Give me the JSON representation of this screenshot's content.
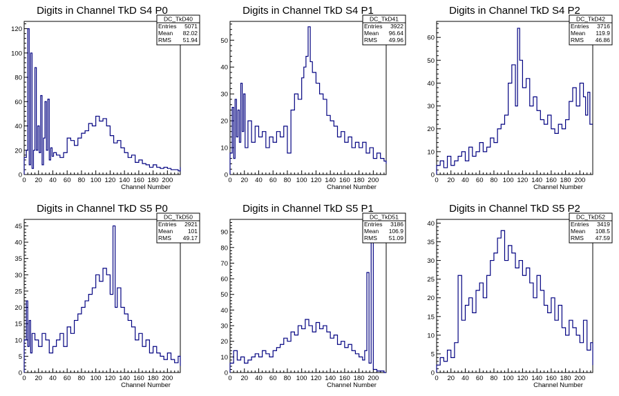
{
  "colors": {
    "line": "#000080",
    "frame": "#000000",
    "background": "#ffffff"
  },
  "chart_data": [
    {
      "type": "line",
      "title": "Digits in Channel TkD S4 P0",
      "xlabel": "Channel Number",
      "ylabel": "",
      "xlim": [
        0,
        218
      ],
      "ylim": [
        0,
        126
      ],
      "xticks": [
        0,
        20,
        40,
        60,
        80,
        100,
        120,
        140,
        160,
        180,
        200
      ],
      "yticks": [
        0,
        20,
        40,
        60,
        80,
        100,
        120
      ],
      "stats": {
        "name": "DC_TkD40",
        "rows": [
          [
            "Entries",
            "5071"
          ],
          [
            "Mean",
            "82.02"
          ],
          [
            "RMS",
            "51.94"
          ]
        ]
      },
      "series": [
        {
          "x": [
            0,
            3,
            5,
            7,
            9,
            11,
            13,
            15,
            17,
            19,
            21,
            23,
            25,
            27,
            29,
            31,
            33,
            35,
            37,
            39,
            41,
            45,
            50,
            55,
            60,
            65,
            70,
            75,
            80,
            85,
            90,
            95,
            100,
            105,
            110,
            115,
            120,
            125,
            130,
            135,
            140,
            145,
            150,
            155,
            160,
            165,
            170,
            175,
            180,
            185,
            190,
            195,
            200,
            205,
            210,
            215,
            218
          ],
          "y": [
            14,
            20,
            120,
            8,
            100,
            5,
            20,
            88,
            20,
            40,
            18,
            65,
            8,
            30,
            60,
            20,
            62,
            12,
            22,
            15,
            18,
            16,
            14,
            18,
            30,
            28,
            24,
            30,
            34,
            36,
            42,
            40,
            48,
            44,
            46,
            40,
            32,
            26,
            28,
            22,
            18,
            14,
            16,
            10,
            12,
            9,
            8,
            6,
            8,
            6,
            5,
            6,
            5,
            4,
            4,
            3,
            6
          ]
        }
      ]
    },
    {
      "type": "line",
      "title": "Digits in Channel TkD S4 P1",
      "xlabel": "Channel Number",
      "ylabel": "",
      "xlim": [
        0,
        218
      ],
      "ylim": [
        0,
        57
      ],
      "xticks": [
        0,
        20,
        40,
        60,
        80,
        100,
        120,
        140,
        160,
        180,
        200
      ],
      "yticks": [
        0,
        10,
        20,
        30,
        40,
        50
      ],
      "stats": {
        "name": "DC_TkD41",
        "rows": [
          [
            "Entries",
            "3922"
          ],
          [
            "Mean",
            "96.64"
          ],
          [
            "RMS",
            "49.96"
          ]
        ]
      },
      "series": [
        {
          "x": [
            0,
            3,
            5,
            7,
            9,
            11,
            13,
            15,
            17,
            19,
            21,
            25,
            30,
            35,
            40,
            45,
            50,
            55,
            60,
            65,
            70,
            75,
            80,
            85,
            90,
            95,
            100,
            103,
            106,
            109,
            112,
            115,
            120,
            125,
            130,
            135,
            140,
            145,
            150,
            155,
            160,
            165,
            170,
            175,
            180,
            185,
            190,
            195,
            200,
            205,
            210,
            215,
            218
          ],
          "y": [
            8,
            25,
            6,
            28,
            14,
            24,
            12,
            34,
            16,
            30,
            10,
            20,
            12,
            18,
            14,
            16,
            10,
            14,
            12,
            16,
            14,
            18,
            8,
            24,
            30,
            28,
            36,
            40,
            44,
            55,
            42,
            38,
            34,
            30,
            28,
            22,
            20,
            18,
            14,
            16,
            12,
            14,
            10,
            12,
            10,
            12,
            8,
            10,
            6,
            8,
            6,
            5,
            4
          ]
        }
      ]
    },
    {
      "type": "line",
      "title": "Digits in Channel TkD S4 P2",
      "xlabel": "Channel Number",
      "ylabel": "",
      "xlim": [
        0,
        218
      ],
      "ylim": [
        0,
        67
      ],
      "xticks": [
        0,
        20,
        40,
        60,
        80,
        100,
        120,
        140,
        160,
        180,
        200
      ],
      "yticks": [
        0,
        10,
        20,
        30,
        40,
        50,
        60
      ],
      "stats": {
        "name": "DC_TkD42",
        "rows": [
          [
            "Entries",
            "3716"
          ],
          [
            "Mean",
            "119.9"
          ],
          [
            "RMS",
            "46.86"
          ]
        ]
      },
      "series": [
        {
          "x": [
            0,
            5,
            10,
            15,
            20,
            25,
            30,
            35,
            40,
            45,
            50,
            55,
            60,
            65,
            70,
            75,
            80,
            85,
            90,
            95,
            100,
            105,
            110,
            113,
            116,
            120,
            125,
            130,
            135,
            140,
            145,
            150,
            155,
            160,
            165,
            170,
            175,
            180,
            185,
            190,
            195,
            200,
            205,
            208,
            211,
            214
          ],
          "y": [
            4,
            6,
            3,
            8,
            4,
            6,
            8,
            10,
            6,
            12,
            8,
            10,
            14,
            10,
            12,
            16,
            14,
            20,
            22,
            26,
            40,
            48,
            30,
            64,
            50,
            38,
            42,
            30,
            34,
            28,
            24,
            22,
            26,
            20,
            18,
            22,
            20,
            24,
            32,
            38,
            30,
            40,
            34,
            26,
            36,
            22
          ]
        }
      ]
    },
    {
      "type": "line",
      "title": "Digits in Channel TkD S5 P0",
      "xlabel": "Channel Number",
      "ylabel": "",
      "xlim": [
        0,
        218
      ],
      "ylim": [
        0,
        47
      ],
      "xticks": [
        0,
        20,
        40,
        60,
        80,
        100,
        120,
        140,
        160,
        180,
        200
      ],
      "yticks": [
        0,
        5,
        10,
        15,
        20,
        25,
        30,
        35,
        40,
        45
      ],
      "stats": {
        "name": "DC_TkD50",
        "rows": [
          [
            "Entries",
            "2921"
          ],
          [
            "Mean",
            "101"
          ],
          [
            "RMS",
            "49.17"
          ]
        ]
      },
      "series": [
        {
          "x": [
            0,
            3,
            5,
            7,
            9,
            11,
            15,
            20,
            25,
            30,
            35,
            40,
            45,
            50,
            55,
            60,
            65,
            70,
            75,
            80,
            85,
            90,
            95,
            100,
            105,
            110,
            115,
            120,
            124,
            127,
            130,
            135,
            140,
            145,
            150,
            155,
            160,
            165,
            170,
            175,
            180,
            185,
            190,
            195,
            200,
            205,
            210,
            215,
            218
          ],
          "y": [
            10,
            22,
            8,
            16,
            6,
            12,
            10,
            8,
            12,
            10,
            6,
            8,
            10,
            12,
            8,
            14,
            12,
            16,
            18,
            20,
            22,
            24,
            26,
            30,
            28,
            32,
            30,
            24,
            45,
            20,
            26,
            20,
            18,
            16,
            14,
            10,
            12,
            8,
            10,
            6,
            8,
            6,
            5,
            4,
            6,
            4,
            3,
            5,
            2
          ]
        }
      ]
    },
    {
      "type": "line",
      "title": "Digits in Channel TkD S5 P1",
      "xlabel": "Channel Number",
      "ylabel": "",
      "xlim": [
        0,
        218
      ],
      "ylim": [
        0,
        98
      ],
      "xticks": [
        0,
        20,
        40,
        60,
        80,
        100,
        120,
        140,
        160,
        180,
        200
      ],
      "yticks": [
        0,
        10,
        20,
        30,
        40,
        50,
        60,
        70,
        80,
        90
      ],
      "stats": {
        "name": "DC_TkD51",
        "rows": [
          [
            "Entries",
            "3186"
          ],
          [
            "Mean",
            "106.9"
          ],
          [
            "RMS",
            "51.09"
          ]
        ]
      },
      "series": [
        {
          "x": [
            0,
            5,
            10,
            15,
            20,
            25,
            30,
            35,
            40,
            45,
            50,
            55,
            60,
            65,
            70,
            75,
            80,
            85,
            90,
            95,
            100,
            105,
            110,
            115,
            120,
            125,
            130,
            135,
            140,
            145,
            150,
            155,
            160,
            165,
            170,
            175,
            180,
            185,
            188,
            191,
            194,
            197,
            200,
            205,
            210,
            215,
            218
          ],
          "y": [
            6,
            14,
            8,
            10,
            6,
            8,
            10,
            12,
            10,
            14,
            12,
            10,
            14,
            16,
            18,
            22,
            20,
            26,
            24,
            30,
            28,
            34,
            30,
            26,
            32,
            28,
            30,
            26,
            22,
            24,
            18,
            20,
            16,
            18,
            14,
            12,
            10,
            8,
            14,
            64,
            6,
            92,
            2,
            1,
            1,
            0,
            0
          ]
        }
      ]
    },
    {
      "type": "line",
      "title": "Digits in Channel TkD S5 P2",
      "xlabel": "Channel Number",
      "ylabel": "",
      "xlim": [
        0,
        218
      ],
      "ylim": [
        0,
        41
      ],
      "xticks": [
        0,
        20,
        40,
        60,
        80,
        100,
        120,
        140,
        160,
        180,
        200
      ],
      "yticks": [
        0,
        5,
        10,
        15,
        20,
        25,
        30,
        35,
        40
      ],
      "stats": {
        "name": "DC_TkD52",
        "rows": [
          [
            "Entries",
            "3419"
          ],
          [
            "Mean",
            "108.5"
          ],
          [
            "RMS",
            "47.59"
          ]
        ]
      },
      "series": [
        {
          "x": [
            0,
            5,
            10,
            15,
            20,
            25,
            30,
            35,
            40,
            45,
            50,
            55,
            60,
            65,
            70,
            75,
            80,
            85,
            90,
            95,
            100,
            105,
            110,
            115,
            120,
            125,
            130,
            135,
            140,
            145,
            150,
            155,
            160,
            165,
            170,
            175,
            180,
            185,
            190,
            195,
            200,
            205,
            210,
            215,
            218
          ],
          "y": [
            2,
            4,
            3,
            6,
            4,
            8,
            26,
            14,
            18,
            20,
            16,
            22,
            24,
            20,
            26,
            30,
            32,
            36,
            38,
            30,
            34,
            32,
            28,
            30,
            26,
            28,
            24,
            20,
            26,
            22,
            18,
            16,
            20,
            14,
            18,
            12,
            10,
            14,
            12,
            10,
            8,
            14,
            6,
            8,
            2
          ]
        }
      ]
    }
  ]
}
